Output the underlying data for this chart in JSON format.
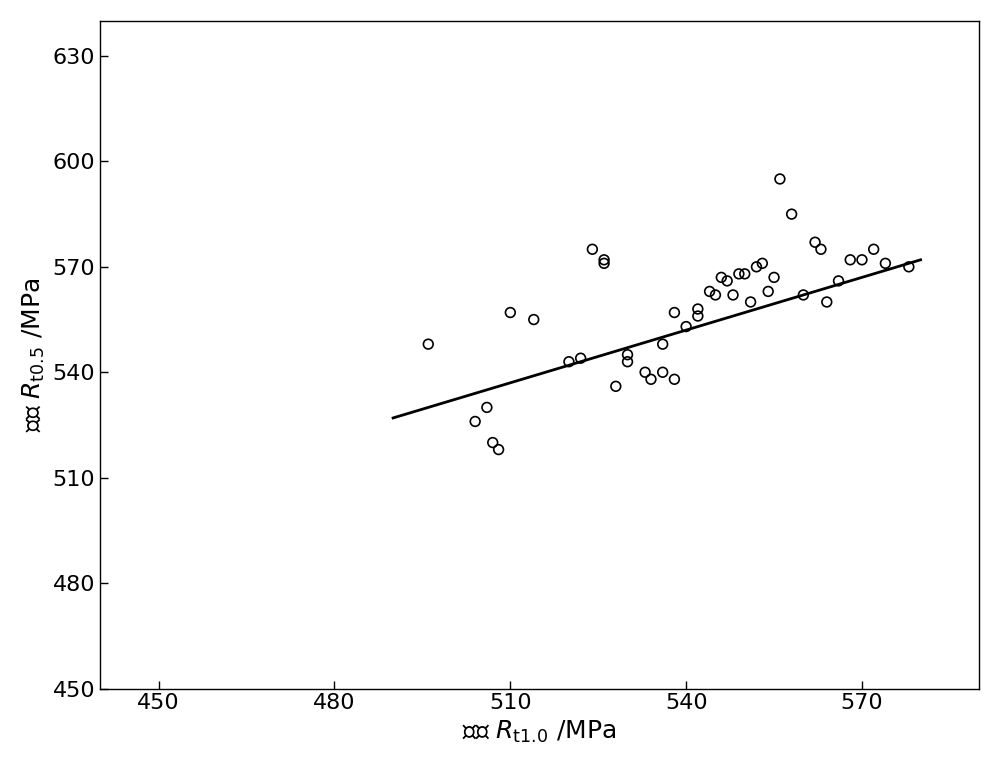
{
  "x_data": [
    496,
    504,
    506,
    507,
    508,
    510,
    514,
    520,
    522,
    524,
    526,
    526,
    528,
    530,
    530,
    533,
    534,
    536,
    536,
    538,
    538,
    540,
    542,
    542,
    544,
    545,
    546,
    547,
    548,
    549,
    550,
    551,
    552,
    553,
    554,
    555,
    556,
    558,
    560,
    562,
    563,
    564,
    566,
    568,
    570,
    572,
    574,
    578
  ],
  "y_data": [
    548,
    526,
    530,
    520,
    518,
    557,
    555,
    543,
    544,
    575,
    572,
    571,
    536,
    543,
    545,
    540,
    538,
    548,
    540,
    557,
    538,
    553,
    556,
    558,
    563,
    562,
    567,
    566,
    562,
    568,
    568,
    560,
    570,
    571,
    563,
    567,
    595,
    585,
    562,
    577,
    575,
    560,
    566,
    572,
    572,
    575,
    571,
    570
  ],
  "line_x": [
    490,
    580
  ],
  "line_y": [
    527,
    572
  ],
  "xlim": [
    440,
    590
  ],
  "ylim": [
    450,
    640
  ],
  "xticks": [
    450,
    480,
    510,
    540,
    570
  ],
  "yticks": [
    450,
    480,
    510,
    540,
    570,
    600,
    630
  ],
  "marker_size": 7,
  "marker_color": "none",
  "marker_edgecolor": "#000000",
  "line_color": "#000000",
  "line_width": 2.0,
  "background_color": "#ffffff",
  "tick_fontsize": 16,
  "label_fontsize": 18
}
